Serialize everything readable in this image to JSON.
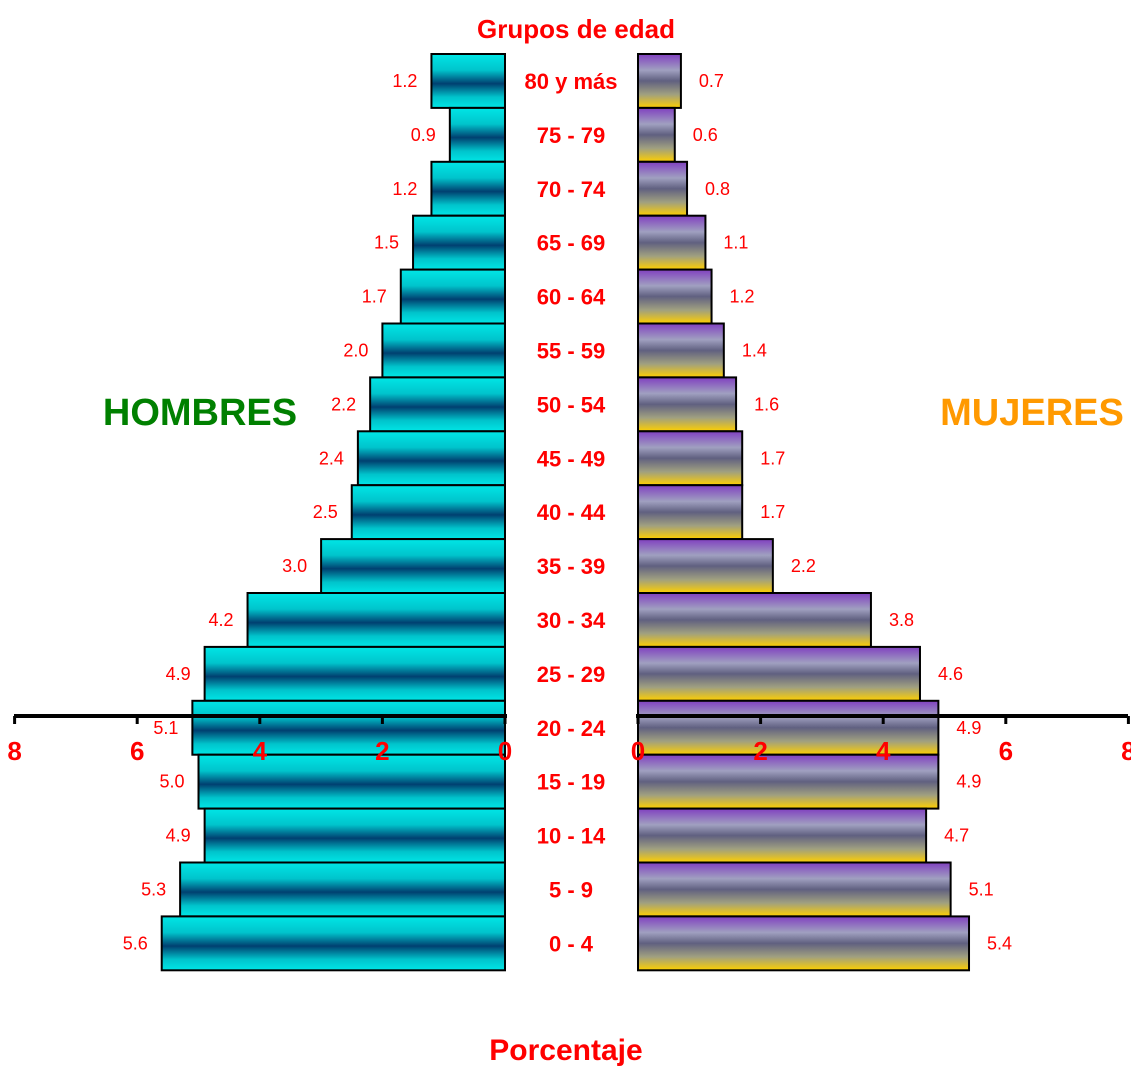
{
  "chart_data": {
    "type": "bar",
    "title": "Grupos de edad",
    "xlabel": "Porcentaje",
    "categories": [
      "80 y más",
      "75 - 79",
      "70 - 74",
      "65 - 69",
      "60 - 64",
      "55 - 59",
      "50 - 54",
      "45 - 49",
      "40 - 44",
      "35 - 39",
      "30 - 34",
      "25 - 29",
      "20 - 24",
      "15 - 19",
      "10 - 14",
      "5 - 9",
      "0 - 4"
    ],
    "series": [
      {
        "name": "HOMBRES",
        "values": [
          1.2,
          0.9,
          1.2,
          1.5,
          1.7,
          2.0,
          2.2,
          2.4,
          2.5,
          3.0,
          4.2,
          4.9,
          5.1,
          5.0,
          4.9,
          5.3,
          5.6
        ]
      },
      {
        "name": "MUJERES",
        "values": [
          0.7,
          0.6,
          0.8,
          1.1,
          1.2,
          1.4,
          1.6,
          1.7,
          1.7,
          2.2,
          3.8,
          4.6,
          4.9,
          4.9,
          4.7,
          5.1,
          5.4
        ]
      }
    ],
    "data_labels": {
      "HOMBRES": [
        "1.2",
        "0.9",
        "1.2",
        "1.5",
        "1.7",
        "2.0",
        "2.2",
        "2.4",
        "2.5",
        "3.0",
        "4.2",
        "4.9",
        "5.1",
        "5.0",
        "4.9",
        "5.3",
        "5.6"
      ],
      "MUJERES": [
        "0.7",
        "0.6",
        "0.8",
        "1.1",
        "1.2",
        "1.4",
        "1.6",
        "1.7",
        "1.7",
        "2.2",
        "3.8",
        "4.6",
        "4.9",
        "4.9",
        "4.7",
        "5.1",
        "5.4"
      ]
    },
    "xlim": [
      0,
      8
    ],
    "x_ticks": [
      "0",
      "2",
      "4",
      "6",
      "8"
    ],
    "grid": false,
    "colors": {
      "text": "#ff0000",
      "hombres_label": "#008000",
      "mujeres_label": "#ff9900",
      "hombres_bar": [
        "#00e6e6",
        "#00c4cc",
        "#004070",
        "#00c4cc",
        "#00e6e6"
      ],
      "mujeres_bar": [
        "#8040c0",
        "#a0a0c0",
        "#606080",
        "#a0a080",
        "#ffd000"
      ]
    }
  }
}
